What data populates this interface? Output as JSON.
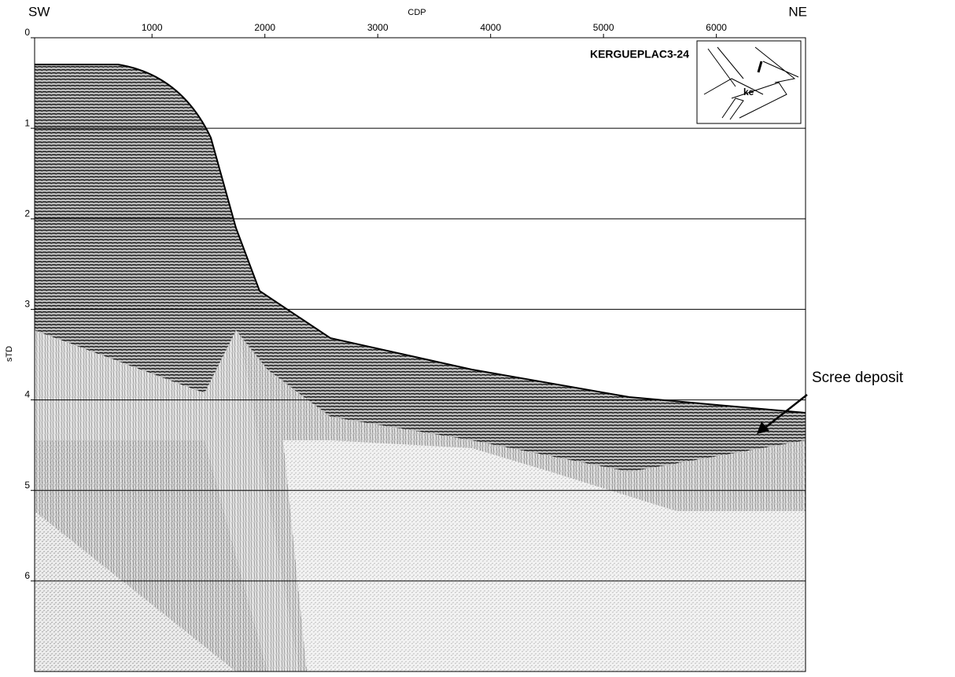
{
  "chart_data": {
    "type": "seismic-section",
    "x_label": "CDP",
    "y_label": "sTD",
    "left_label": "SW",
    "right_label": "NE",
    "profile_name": "KERGUEPLAC3-24",
    "annotation": "Scree deposit",
    "xlim": [
      -40,
      6790
    ],
    "xticks": [
      1000,
      2000,
      3000,
      4000,
      5000,
      6000
    ],
    "ylim": [
      0,
      7
    ],
    "yticks": [
      0,
      1,
      2,
      3,
      4,
      5,
      6
    ],
    "grid": true
  }
}
